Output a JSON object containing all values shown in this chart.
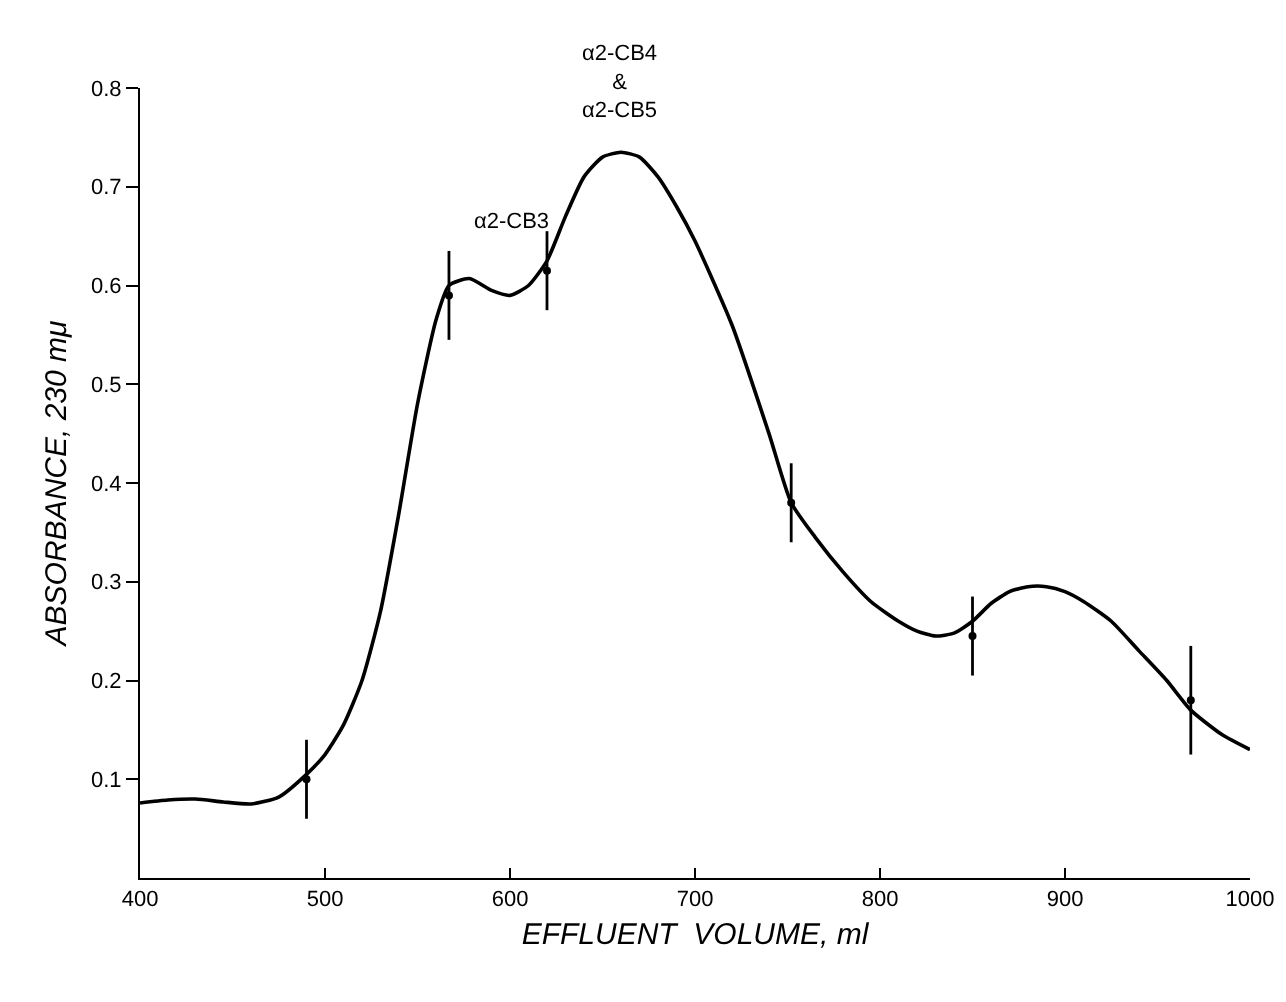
{
  "chart_data": {
    "type": "line",
    "xlabel": "EFFLUENT  VOLUME, ml",
    "ylabel": "ABSORBANCE, 230 mμ",
    "xlim": [
      400,
      1000
    ],
    "xticks": [
      400,
      500,
      600,
      700,
      800,
      900,
      1000
    ],
    "ylim": [
      0,
      0.8
    ],
    "yticks": [
      0.1,
      0.2,
      0.3,
      0.4,
      0.5,
      0.6,
      0.7,
      0.8
    ],
    "marker": "none",
    "line_style": "solid",
    "series": [
      {
        "color": "#000000",
        "x": [
          400,
          415,
          430,
          445,
          460,
          475,
          490,
          500,
          510,
          520,
          530,
          540,
          550,
          560,
          567,
          578,
          590,
          600,
          610,
          620,
          630,
          640,
          650,
          660,
          670,
          680,
          690,
          700,
          720,
          740,
          752,
          765,
          780,
          795,
          810,
          820,
          830,
          840,
          850,
          860,
          870,
          880,
          890,
          900,
          910,
          925,
          940,
          955,
          968,
          985,
          1000
        ],
        "values": [
          0.076,
          0.079,
          0.08,
          0.077,
          0.075,
          0.082,
          0.105,
          0.125,
          0.155,
          0.2,
          0.27,
          0.37,
          0.48,
          0.565,
          0.6,
          0.607,
          0.595,
          0.59,
          0.6,
          0.625,
          0.67,
          0.71,
          0.73,
          0.735,
          0.73,
          0.71,
          0.68,
          0.645,
          0.56,
          0.45,
          0.38,
          0.345,
          0.31,
          0.28,
          0.26,
          0.25,
          0.245,
          0.248,
          0.26,
          0.278,
          0.29,
          0.295,
          0.295,
          0.29,
          0.28,
          0.26,
          0.23,
          0.2,
          0.17,
          0.145,
          0.13
        ]
      },
      {
        "type": "scatter",
        "color": "#000000",
        "x": [
          490,
          567,
          620,
          752,
          850,
          968
        ],
        "values": [
          0.1,
          0.59,
          0.615,
          0.38,
          0.245,
          0.18
        ],
        "errors": [
          0.04,
          0.045,
          0.04,
          0.04,
          0.04,
          0.055
        ],
        "marker": "circle"
      }
    ],
    "annotations": [
      "α2-CB3",
      "α2-CB4\n&\nα2-CB5"
    ]
  }
}
